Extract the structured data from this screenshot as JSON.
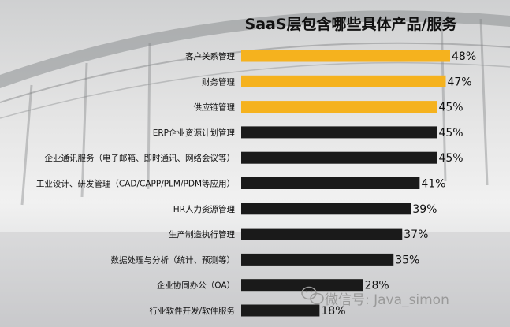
{
  "chart_data": {
    "type": "bar",
    "orientation": "horizontal",
    "title": "SaaS层包含哪些具体产品/服务",
    "categories": [
      "客户关系管理",
      "财务管理",
      "供应链管理",
      "ERP企业资源计划管理",
      "企业通讯服务（电子邮箱、即时通讯、网络会议等）",
      "工业设计、研发管理（CAD/CAPP/PLM/PDM等应用）",
      "HR人力资源管理",
      "生产制造执行管理",
      "数据处理与分析（统计、预测等）",
      "企业协同办公（OA）",
      "行业软件开发/软件服务"
    ],
    "values": [
      48,
      47,
      45,
      45,
      45,
      41,
      39,
      37,
      35,
      28,
      18
    ],
    "value_labels": [
      "48%",
      "47%",
      "45%",
      "45%",
      "45%",
      "41%",
      "39%",
      "37%",
      "35%",
      "28%",
      "18%"
    ],
    "highlight_count": 3,
    "colors": {
      "highlight": "#f5b21e",
      "default": "#1a1a1a"
    },
    "xlim": [
      0,
      48
    ],
    "grid": false,
    "legend": "none"
  },
  "watermark": {
    "icon": "wechat-icon",
    "text": "微信号: Java_simon"
  }
}
